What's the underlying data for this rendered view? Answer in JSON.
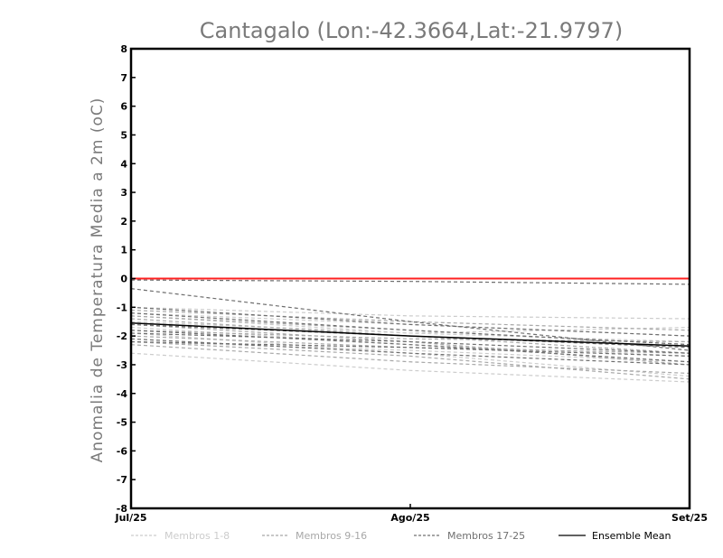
{
  "chart_data": {
    "type": "line",
    "title": "Cantagalo (Lon:-42.3664,Lat:-21.9797)",
    "ylabel": "Anomalia de Temperatura Media a 2m (oC)",
    "xlabel": "",
    "x": [
      "Jul/25",
      "Ago/25",
      "Set/25"
    ],
    "ylim": [
      -8,
      8
    ],
    "yticks": [
      8,
      7,
      6,
      5,
      4,
      3,
      2,
      1,
      0,
      -1,
      -2,
      -3,
      -4,
      -5,
      -6,
      -7,
      -8
    ],
    "ytick_labels": [
      "8",
      "7",
      "6",
      "5",
      "4",
      "3",
      "2",
      "1",
      "0",
      "-1",
      "-2",
      "-3",
      "-4",
      "-5",
      "-6",
      "-7",
      "-8"
    ],
    "reference_line": {
      "y": 0,
      "color": "#ff2020"
    },
    "series": [
      {
        "name": "Membros 1-8",
        "group": "m1",
        "values": [
          -2.6,
          -3.2,
          -3.6
        ]
      },
      {
        "name": "Membros 1-8",
        "group": "m1",
        "values": [
          -1.3,
          -1.9,
          -2.2
        ]
      },
      {
        "name": "Membros 1-8",
        "group": "m1",
        "values": [
          -1.0,
          -1.3,
          -1.4
        ]
      },
      {
        "name": "Membros 1-8",
        "group": "m1",
        "values": [
          -1.7,
          -2.3,
          -2.7
        ]
      },
      {
        "name": "Membros 1-8",
        "group": "m1",
        "values": [
          -2.2,
          -2.5,
          -2.9
        ]
      },
      {
        "name": "Membros 1-8",
        "group": "m1",
        "values": [
          -1.5,
          -1.9,
          -1.7
        ]
      },
      {
        "name": "Membros 1-8",
        "group": "m1",
        "values": [
          -1.2,
          -1.6,
          -2.0
        ]
      },
      {
        "name": "Membros 1-8",
        "group": "m1",
        "values": [
          -1.9,
          -2.6,
          -3.4
        ]
      },
      {
        "name": "Membros 9-16",
        "group": "m2",
        "values": [
          -1.1,
          -1.5,
          -1.8
        ]
      },
      {
        "name": "Membros 9-16",
        "group": "m2",
        "values": [
          -2.0,
          -2.4,
          -2.6
        ]
      },
      {
        "name": "Membros 9-16",
        "group": "m2",
        "values": [
          -1.6,
          -2.2,
          -3.0
        ]
      },
      {
        "name": "Membros 9-16",
        "group": "m2",
        "values": [
          -2.2,
          -2.7,
          -3.5
        ]
      },
      {
        "name": "Membros 9-16",
        "group": "m2",
        "values": [
          -1.3,
          -1.8,
          -2.3
        ]
      },
      {
        "name": "Membros 9-16",
        "group": "m2",
        "values": [
          -1.8,
          -2.1,
          -2.2
        ]
      },
      {
        "name": "Membros 9-16",
        "group": "m2",
        "values": [
          -1.4,
          -2.0,
          -2.6
        ]
      },
      {
        "name": "Membros 9-16",
        "group": "m2",
        "values": [
          -2.3,
          -2.9,
          -3.3
        ]
      },
      {
        "name": "Membros 17-25",
        "group": "m3",
        "values": [
          -0.05,
          -0.1,
          -0.2
        ]
      },
      {
        "name": "Membros 17-25",
        "group": "m3",
        "values": [
          -0.35,
          -1.5,
          -2.5
        ]
      },
      {
        "name": "Membros 17-25",
        "group": "m3",
        "values": [
          -1.0,
          -1.6,
          -2.0
        ]
      },
      {
        "name": "Membros 17-25",
        "group": "m3",
        "values": [
          -1.8,
          -2.3,
          -2.9
        ]
      },
      {
        "name": "Membros 17-25",
        "group": "m3",
        "values": [
          -2.1,
          -2.6,
          -3.0
        ]
      },
      {
        "name": "Membros 17-25",
        "group": "m3",
        "values": [
          -1.6,
          -2.0,
          -2.4
        ]
      },
      {
        "name": "Membros 17-25",
        "group": "m3",
        "values": [
          -2.2,
          -2.4,
          -2.7
        ]
      },
      {
        "name": "Membros 17-25",
        "group": "m3",
        "values": [
          -1.2,
          -1.8,
          -2.3
        ]
      },
      {
        "name": "Membros 17-25",
        "group": "m3",
        "values": [
          -1.9,
          -2.2,
          -2.6
        ]
      },
      {
        "name": "Ensemble Mean",
        "group": "mean",
        "values": [
          -1.55,
          -2.0,
          -2.35
        ]
      }
    ],
    "legend": [
      {
        "label": "Membros 1-8",
        "color": "#cccccc",
        "style": "dashed"
      },
      {
        "label": "Membros 9-16",
        "color": "#a8a8a8",
        "style": "dashed"
      },
      {
        "label": "Membros 17-25",
        "color": "#707070",
        "style": "dashed"
      },
      {
        "label": "Ensemble Mean",
        "color": "#000000",
        "style": "solid"
      }
    ],
    "legend_placement": "bottom"
  }
}
